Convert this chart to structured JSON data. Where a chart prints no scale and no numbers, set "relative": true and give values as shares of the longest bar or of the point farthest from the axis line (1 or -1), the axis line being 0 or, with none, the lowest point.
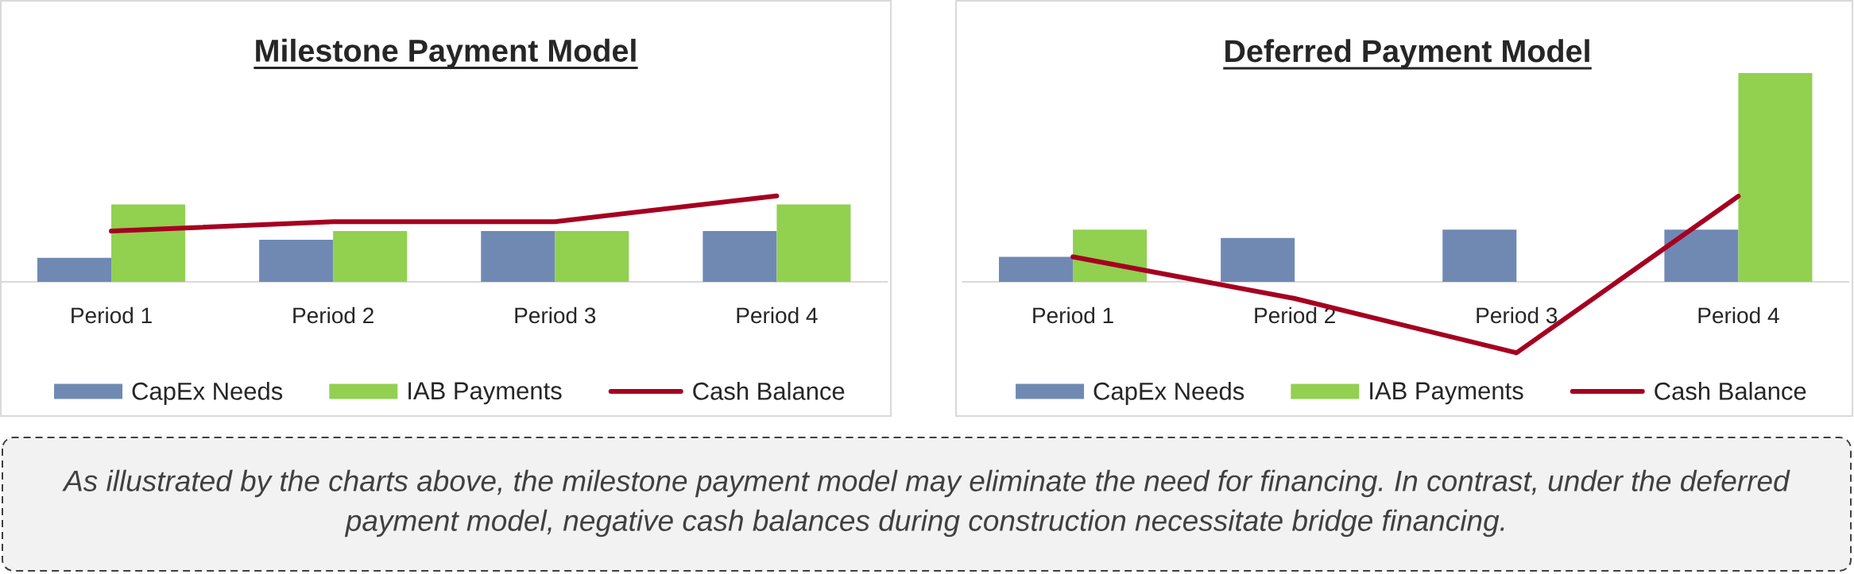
{
  "chart_data": [
    {
      "type": "bar",
      "title": "Milestone Payment Model",
      "categories": [
        "Period 1",
        "Period 2",
        "Period 3",
        "Period 4"
      ],
      "relative": true,
      "legend": "bottom",
      "series": [
        {
          "name": "CapEx Needs",
          "color": "#6f89b3",
          "values": [
            0.28,
            0.49,
            0.59,
            0.59
          ]
        },
        {
          "name": "IAB Payments",
          "color": "#92d050",
          "values": [
            0.9,
            0.59,
            0.59,
            0.9
          ]
        },
        {
          "name": "Cash Balance",
          "type": "line",
          "color": "#a50021",
          "values": [
            0.59,
            0.7,
            0.7,
            1
          ]
        }
      ]
    },
    {
      "type": "bar",
      "title": "Deferred Payment Model",
      "categories": [
        "Period 1",
        "Period 2",
        "Period 3",
        "Period 4"
      ],
      "relative": true,
      "legend": "bottom",
      "series": [
        {
          "name": "CapEx Needs",
          "color": "#6f89b3",
          "values": [
            0.12,
            0.21,
            0.25,
            0.25
          ]
        },
        {
          "name": "IAB Payments",
          "color": "#92d050",
          "values": [
            0.25,
            null,
            null,
            1
          ]
        },
        {
          "name": "Cash Balance",
          "type": "line",
          "color": "#a50021",
          "values": [
            0.12,
            -0.08,
            -0.34,
            0.41
          ]
        }
      ]
    },
    {
      "type": "other",
      "annotations": [
        "As illustrated by the charts above, the milestone payment model may eliminate the need for financing. In contrast, under the deferred payment model, negative cash balances during construction necessitate bridge financing."
      ]
    }
  ]
}
